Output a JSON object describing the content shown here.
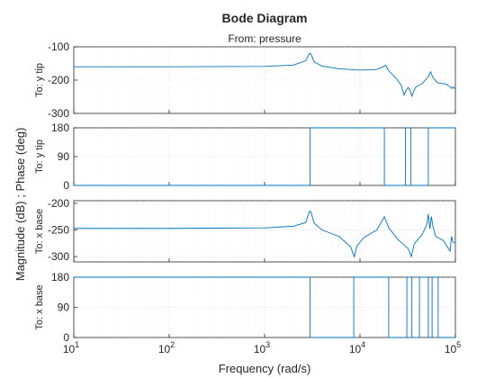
{
  "chart_data": {
    "type": "line",
    "title": "Bode Diagram",
    "subtitle": "From: pressure",
    "xlabel": "Frequency  (rad/s)",
    "ylabel": "Magnitude (dB) ; Phase (deg)",
    "xscale": "log",
    "xlim": [
      10,
      100000
    ],
    "x_ticks": [
      {
        "base": "10",
        "exp": "1"
      },
      {
        "base": "10",
        "exp": "2"
      },
      {
        "base": "10",
        "exp": "3"
      },
      {
        "base": "10",
        "exp": "4"
      },
      {
        "base": "10",
        "exp": "5"
      }
    ],
    "grid": true,
    "line_color": "#0072bd",
    "panels": [
      {
        "kind": "magnitude",
        "row_label": "To: y tip",
        "ylim": [
          -300,
          -100
        ],
        "yticks": [
          "-100",
          "-200",
          "-300"
        ],
        "x": [
          10,
          100,
          1000,
          2000,
          2700,
          2950,
          3050,
          3300,
          4000,
          6000,
          10000,
          15000,
          17500,
          18500,
          20000,
          24000,
          27000,
          29000,
          30500,
          32000,
          33500,
          35000,
          38000,
          45000,
          52000,
          55000,
          58000,
          65000,
          80000,
          92000,
          95000,
          98000,
          100000
        ],
        "y": [
          -160,
          -160,
          -159,
          -155,
          -142,
          -120,
          -120,
          -145,
          -158,
          -166,
          -170,
          -168,
          -160,
          -155,
          -172,
          -195,
          -215,
          -245,
          -230,
          -222,
          -232,
          -248,
          -222,
          -210,
          -190,
          -175,
          -192,
          -208,
          -212,
          -225,
          -220,
          -225,
          -225
        ]
      },
      {
        "kind": "phase",
        "row_label": "To: y tip",
        "ylim": [
          0,
          180
        ],
        "yticks": [
          "180",
          "90",
          "0"
        ],
        "x": [
          10,
          2999,
          3001,
          17999,
          18001,
          29999,
          30001,
          33999,
          34001,
          51999,
          52001,
          100000
        ],
        "y": [
          0,
          0,
          180,
          180,
          0,
          0,
          180,
          180,
          0,
          0,
          180,
          180
        ]
      },
      {
        "kind": "magnitude",
        "row_label": "To: x base",
        "ylim": [
          -310,
          -195
        ],
        "yticks": [
          "-200",
          "-250",
          "-300"
        ],
        "x": [
          10,
          100,
          1000,
          2000,
          2700,
          2950,
          3050,
          3300,
          4000,
          6000,
          8000,
          8700,
          9300,
          11000,
          15000,
          18000,
          20000,
          25000,
          32000,
          34500,
          37000,
          45000,
          50000,
          52000,
          54000,
          56000,
          58000,
          62000,
          75000,
          88000,
          91000,
          94000,
          100000
        ],
        "y": [
          -247,
          -247,
          -246,
          -243,
          -236,
          -215,
          -215,
          -237,
          -250,
          -262,
          -282,
          -300,
          -280,
          -264,
          -250,
          -225,
          -246,
          -268,
          -285,
          -300,
          -276,
          -258,
          -240,
          -220,
          -248,
          -225,
          -242,
          -262,
          -270,
          -290,
          -262,
          -272,
          -275
        ]
      },
      {
        "kind": "phase",
        "row_label": "To: x base",
        "ylim": [
          0,
          180
        ],
        "yticks": [
          "180",
          "90",
          "0"
        ],
        "x": [
          10,
          2999,
          3001,
          8599,
          8601,
          19999,
          20001,
          30999,
          31001,
          34999,
          35001,
          41999,
          42001,
          51999,
          52001,
          56999,
          57001,
          65999,
          66001,
          100000
        ],
        "y": [
          180,
          180,
          0,
          0,
          180,
          180,
          0,
          0,
          180,
          180,
          0,
          0,
          180,
          180,
          0,
          0,
          180,
          180,
          0,
          0
        ]
      }
    ]
  }
}
